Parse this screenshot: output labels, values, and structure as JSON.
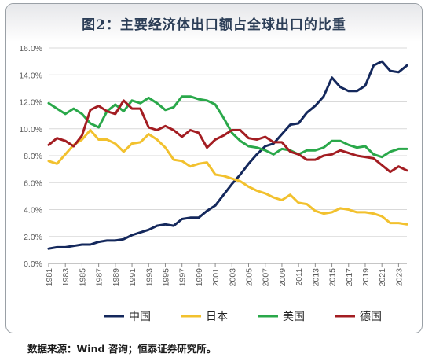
{
  "title": "图2：主要经济体出口额占全球出口的比重",
  "source": "数据来源：Wind 咨询；恒泰证券研究所。",
  "chart_data": {
    "type": "line",
    "title": "图2：主要经济体出口额占全球出口的比重",
    "xlabel": "",
    "ylabel": "",
    "ylim": [
      0,
      16
    ],
    "yticks": [
      "0.0%",
      "2.0%",
      "4.0%",
      "6.0%",
      "8.0%",
      "10.0%",
      "12.0%",
      "14.0%",
      "16.0%"
    ],
    "x": [
      1981,
      1982,
      1983,
      1984,
      1985,
      1986,
      1987,
      1988,
      1989,
      1990,
      1991,
      1992,
      1993,
      1994,
      1995,
      1996,
      1997,
      1998,
      1999,
      2000,
      2001,
      2002,
      2003,
      2004,
      2005,
      2006,
      2007,
      2008,
      2009,
      2010,
      2011,
      2012,
      2013,
      2014,
      2015,
      2016,
      2017,
      2018,
      2019,
      2020,
      2021,
      2022,
      2023,
      2024
    ],
    "xtick_labels": [
      "1981",
      "1983",
      "1985",
      "1987",
      "1989",
      "1991",
      "1993",
      "1995",
      "1997",
      "1999",
      "2001",
      "2003",
      "2005",
      "2007",
      "2009",
      "2011",
      "2013",
      "2015",
      "2017",
      "2019",
      "2021",
      "2023"
    ],
    "grid": true,
    "legend": "bottom",
    "series": [
      {
        "name": "中国",
        "color": "#14285c",
        "values": [
          1.1,
          1.2,
          1.2,
          1.3,
          1.4,
          1.4,
          1.6,
          1.7,
          1.7,
          1.8,
          2.1,
          2.3,
          2.5,
          2.8,
          2.9,
          2.8,
          3.3,
          3.4,
          3.4,
          3.9,
          4.3,
          5.1,
          5.9,
          6.6,
          7.4,
          8.1,
          8.7,
          8.9,
          9.6,
          10.3,
          10.4,
          11.2,
          11.7,
          12.4,
          13.8,
          13.1,
          12.8,
          12.8,
          13.2,
          14.7,
          15.0,
          14.3,
          14.2,
          14.7
        ]
      },
      {
        "name": "日本",
        "color": "#f2c12e",
        "values": [
          7.6,
          7.4,
          8.1,
          8.8,
          9.2,
          9.9,
          9.2,
          9.2,
          8.9,
          8.3,
          8.9,
          9.0,
          9.6,
          9.2,
          8.6,
          7.7,
          7.6,
          7.2,
          7.4,
          7.5,
          6.6,
          6.5,
          6.3,
          6.1,
          5.7,
          5.4,
          5.2,
          4.9,
          4.7,
          5.1,
          4.5,
          4.4,
          3.9,
          3.7,
          3.8,
          4.1,
          4.0,
          3.8,
          3.8,
          3.7,
          3.5,
          3.0,
          3.0,
          2.9
        ]
      },
      {
        "name": "美国",
        "color": "#2aa84a",
        "values": [
          11.9,
          11.5,
          11.1,
          11.5,
          11.1,
          10.4,
          10.1,
          11.3,
          11.8,
          11.3,
          12.1,
          11.9,
          12.3,
          11.9,
          11.4,
          11.6,
          12.4,
          12.4,
          12.2,
          12.1,
          11.8,
          10.8,
          9.7,
          9.1,
          8.7,
          8.6,
          8.4,
          8.1,
          8.5,
          8.4,
          8.1,
          8.4,
          8.4,
          8.6,
          9.1,
          9.1,
          8.8,
          8.6,
          8.7,
          8.1,
          7.9,
          8.3,
          8.5,
          8.5
        ]
      },
      {
        "name": "德国",
        "color": "#a31d22",
        "values": [
          8.8,
          9.3,
          9.1,
          8.7,
          9.5,
          11.4,
          11.7,
          11.3,
          11.1,
          12.1,
          11.5,
          11.5,
          10.1,
          9.9,
          10.2,
          9.9,
          9.4,
          9.9,
          9.7,
          8.6,
          9.2,
          9.5,
          9.9,
          9.9,
          9.3,
          9.2,
          9.4,
          9.0,
          9.0,
          8.3,
          8.1,
          7.7,
          7.7,
          8.0,
          8.1,
          8.4,
          8.2,
          8.0,
          7.9,
          7.8,
          7.3,
          6.8,
          7.2,
          6.9
        ]
      }
    ]
  }
}
